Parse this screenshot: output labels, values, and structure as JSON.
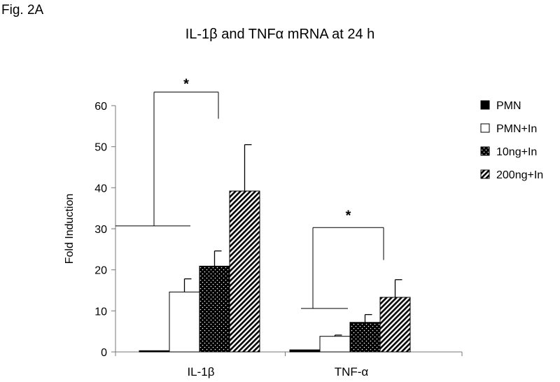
{
  "figure_label": "Fig. 2A",
  "chart_data": {
    "type": "bar",
    "title": "IL-1β and TNFα mRNA at 24 h",
    "xlabel": "",
    "ylabel": "Fold Induction",
    "ylim": [
      0,
      60
    ],
    "yticks": [
      0,
      10,
      20,
      30,
      40,
      50,
      60
    ],
    "categories": [
      "IL-1β",
      "TNF-α"
    ],
    "series": [
      {
        "name": "PMN",
        "values": [
          0.3,
          0.5
        ],
        "errors": [
          0,
          0
        ],
        "fill": "solid-black"
      },
      {
        "name": "PMN+In",
        "values": [
          14.6,
          3.8
        ],
        "errors": [
          3.2,
          0.3
        ],
        "fill": "white"
      },
      {
        "name": "10ng+In",
        "values": [
          20.9,
          7.2
        ],
        "errors": [
          3.7,
          1.9
        ],
        "fill": "dotted-black"
      },
      {
        "name": "200ng+In",
        "values": [
          39.2,
          13.3
        ],
        "errors": [
          11.3,
          4.3
        ],
        "fill": "hatched"
      }
    ],
    "annotations": [
      {
        "text": "*",
        "category": "IL-1β",
        "label_y": 65.5
      },
      {
        "text": "*",
        "category": "TNF-α",
        "label_y": 33.5
      }
    ],
    "legend_position": "right",
    "grid": false
  }
}
